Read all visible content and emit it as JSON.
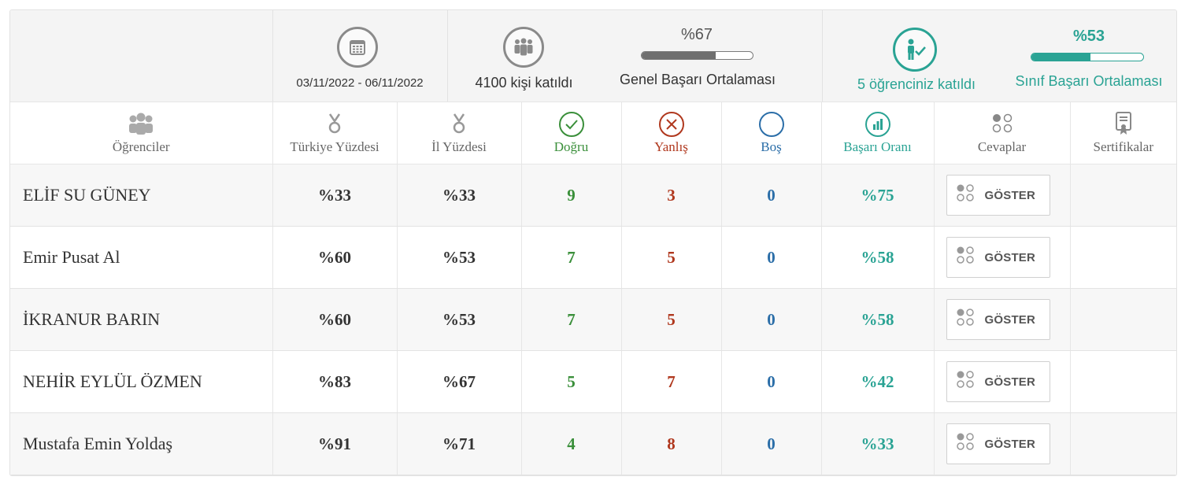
{
  "summary": {
    "calendar_icon": "calendar-icon",
    "date_range": "03/11/2022  - 06/11/2022",
    "participants_icon": "group-people-icon",
    "participants_text": "4100 kişi katıldı",
    "general_percent": "%67",
    "general_progress": 0.67,
    "general_label": "Genel Başarı Ortalaması",
    "students_icon": "student-check-icon",
    "students_text": "5 öğrenciniz katıldı",
    "class_percent": "%53",
    "class_progress": 0.53,
    "class_label": "Sınıf Başarı Ortalaması"
  },
  "colors": {
    "teal": "#2aa394",
    "green": "#3a8f3a",
    "red": "#b0381e",
    "blue": "#2b6ea8",
    "gray_bar": "#6f6f6f"
  },
  "columns": {
    "students": "Öğrenciler",
    "turkiye": "Türkiye Yüzdesi",
    "il": "İl Yüzdesi",
    "correct": "Doğru",
    "wrong": "Yanlış",
    "empty": "Boş",
    "success": "Başarı Oranı",
    "answers": "Cevaplar",
    "certificates": "Sertifikalar"
  },
  "button_label": "GÖSTER",
  "rows": [
    {
      "name": "ELİF SU GÜNEY",
      "turkiye": "%33",
      "il": "%33",
      "correct": "9",
      "wrong": "3",
      "empty": "0",
      "success": "%75"
    },
    {
      "name": "Emir Pusat Al",
      "turkiye": "%60",
      "il": "%53",
      "correct": "7",
      "wrong": "5",
      "empty": "0",
      "success": "%58"
    },
    {
      "name": "İKRANUR BARIN",
      "turkiye": "%60",
      "il": "%53",
      "correct": "7",
      "wrong": "5",
      "empty": "0",
      "success": "%58"
    },
    {
      "name": "NEHİR EYLÜL ÖZMEN",
      "turkiye": "%83",
      "il": "%67",
      "correct": "5",
      "wrong": "7",
      "empty": "0",
      "success": "%42"
    },
    {
      "name": "Mustafa Emin Yoldaş",
      "turkiye": "%91",
      "il": "%71",
      "correct": "4",
      "wrong": "8",
      "empty": "0",
      "success": "%33"
    }
  ]
}
